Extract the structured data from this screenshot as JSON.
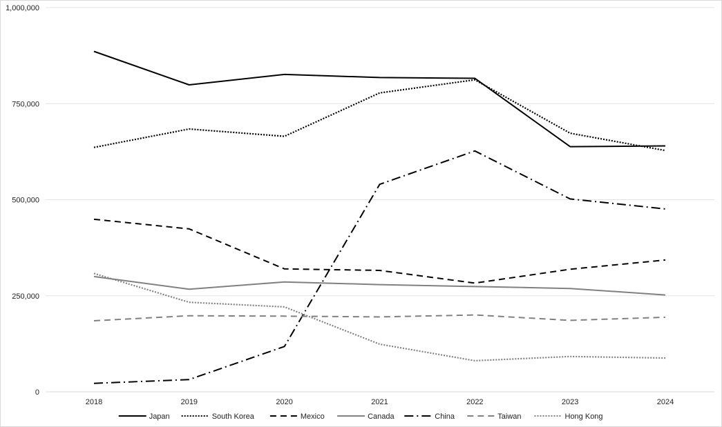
{
  "chart_data": {
    "type": "line",
    "title": "",
    "xlabel": "",
    "ylabel": "",
    "categories": [
      "2018",
      "2019",
      "2020",
      "2021",
      "2022",
      "2023",
      "2024"
    ],
    "ylim": [
      0,
      1000000
    ],
    "yticks": [
      {
        "value": 0,
        "label": "0"
      },
      {
        "value": 250000,
        "label": "250,000"
      },
      {
        "value": 500000,
        "label": "500,000"
      },
      {
        "value": 750000,
        "label": "750,000"
      },
      {
        "value": 1000000,
        "label": "1,000,000"
      }
    ],
    "grid": true,
    "legend_position": "bottom",
    "series": [
      {
        "name": "Japan",
        "values": [
          886000,
          799000,
          826000,
          818000,
          816000,
          638000,
          640000
        ],
        "color": "#000000",
        "style": "solid"
      },
      {
        "name": "South Korea",
        "values": [
          636000,
          684000,
          665000,
          778000,
          812000,
          673000,
          628000
        ],
        "color": "#000000",
        "style": "dotted"
      },
      {
        "name": "Mexico",
        "values": [
          449000,
          424000,
          320000,
          316000,
          283000,
          319000,
          343000
        ],
        "color": "#000000",
        "style": "dashed"
      },
      {
        "name": "Canada",
        "values": [
          300000,
          267000,
          286000,
          279000,
          274000,
          269000,
          252000
        ],
        "color": "#808080",
        "style": "solid"
      },
      {
        "name": "China",
        "values": [
          22000,
          32000,
          118000,
          540000,
          627000,
          502000,
          476000
        ],
        "color": "#000000",
        "style": "dashdot"
      },
      {
        "name": "Taiwan",
        "values": [
          185000,
          198000,
          197000,
          195000,
          200000,
          186000,
          194000
        ],
        "color": "#808080",
        "style": "dashed"
      },
      {
        "name": "Hong Kong",
        "values": [
          308000,
          233000,
          221000,
          124000,
          81000,
          92000,
          88000
        ],
        "color": "#808080",
        "style": "dotted"
      }
    ]
  }
}
